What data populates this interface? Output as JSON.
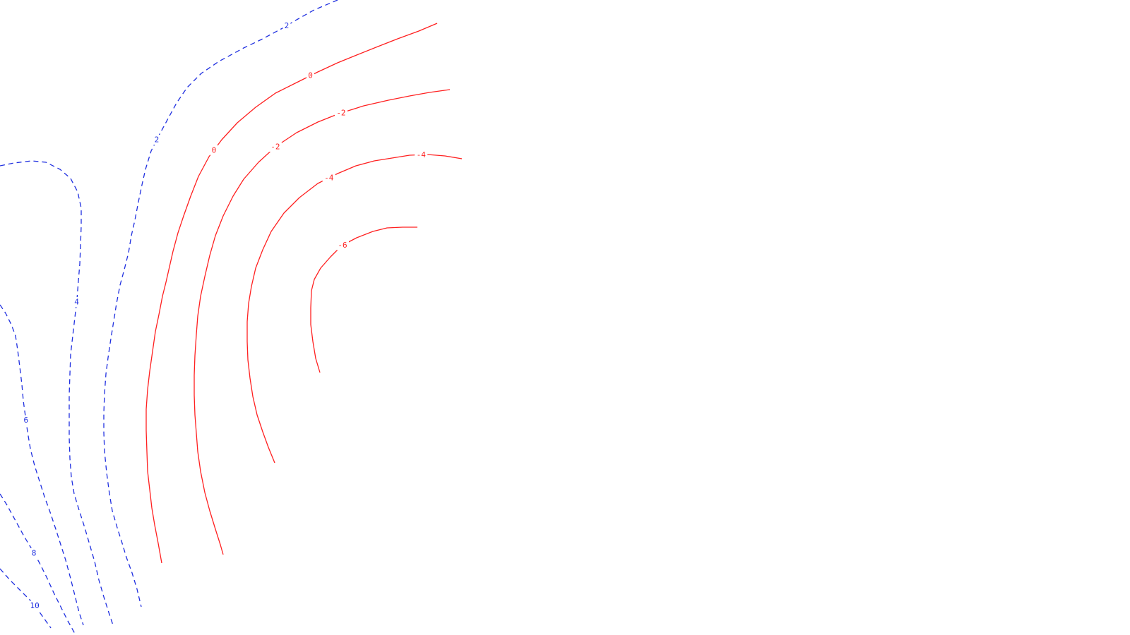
{
  "chart_data": {
    "type": "contour",
    "title": "",
    "xlabel": "",
    "ylabel": "",
    "grid": false,
    "legend": "none",
    "styles": {
      "positive": {
        "color": "#1f2fe0",
        "dash": "dashed"
      },
      "negative": {
        "color": "#ff2020",
        "dash": "solid"
      },
      "zero": {
        "color": "#ff2020",
        "dash": "solid"
      }
    },
    "contours": [
      {
        "level": 2,
        "sign": "positive",
        "labels": [
          "2",
          "2"
        ],
        "points": [
          [
            478,
            0
          ],
          [
            445,
            14
          ],
          [
            420,
            28
          ],
          [
            400,
            40
          ],
          [
            370,
            56
          ],
          [
            345,
            68
          ],
          [
            310,
            87
          ],
          [
            285,
            104
          ],
          [
            265,
            124
          ],
          [
            250,
            146
          ],
          [
            238,
            168
          ],
          [
            225,
            192
          ],
          [
            214,
            214
          ],
          [
            206,
            240
          ],
          [
            201,
            262
          ],
          [
            196,
            286
          ],
          [
            191,
            312
          ],
          [
            186,
            334
          ],
          [
            182,
            358
          ],
          [
            176,
            382
          ],
          [
            170,
            404
          ],
          [
            165,
            430
          ],
          [
            161,
            455
          ],
          [
            157,
            480
          ],
          [
            153,
            507
          ],
          [
            150,
            530
          ],
          [
            148,
            558
          ],
          [
            147,
            585
          ],
          [
            147,
            613
          ],
          [
            148,
            640
          ],
          [
            151,
            670
          ],
          [
            155,
            700
          ],
          [
            159,
            724
          ],
          [
            166,
            748
          ],
          [
            173,
            770
          ],
          [
            179,
            790
          ],
          [
            187,
            812
          ],
          [
            194,
            835
          ],
          [
            200,
            860
          ]
        ]
      },
      {
        "level": 4,
        "sign": "positive",
        "labels": [
          "4"
        ],
        "points": [
          [
            0,
            235
          ],
          [
            20,
            231
          ],
          [
            45,
            228
          ],
          [
            65,
            230
          ],
          [
            85,
            240
          ],
          [
            100,
            253
          ],
          [
            110,
            272
          ],
          [
            115,
            295
          ],
          [
            115,
            320
          ],
          [
            114,
            348
          ],
          [
            113,
            374
          ],
          [
            111,
            398
          ],
          [
            109,
            424
          ],
          [
            106,
            450
          ],
          [
            103,
            476
          ],
          [
            100,
            502
          ],
          [
            99,
            530
          ],
          [
            98,
            560
          ],
          [
            98,
            590
          ],
          [
            98,
            620
          ],
          [
            99,
            650
          ],
          [
            101,
            676
          ],
          [
            105,
            700
          ],
          [
            112,
            723
          ],
          [
            120,
            748
          ],
          [
            127,
            772
          ],
          [
            134,
            796
          ],
          [
            140,
            822
          ],
          [
            147,
            846
          ],
          [
            154,
            868
          ],
          [
            160,
            886
          ]
        ]
      },
      {
        "level": 6,
        "sign": "positive",
        "labels": [
          "6"
        ],
        "points": [
          [
            0,
            432
          ],
          [
            8,
            444
          ],
          [
            16,
            460
          ],
          [
            22,
            476
          ],
          [
            25,
            496
          ],
          [
            28,
            520
          ],
          [
            31,
            545
          ],
          [
            33,
            568
          ],
          [
            36,
            590
          ],
          [
            39,
            612
          ],
          [
            43,
            636
          ],
          [
            49,
            660
          ],
          [
            56,
            682
          ],
          [
            63,
            704
          ],
          [
            71,
            726
          ],
          [
            79,
            750
          ],
          [
            86,
            772
          ],
          [
            93,
            794
          ],
          [
            100,
            820
          ],
          [
            106,
            844
          ],
          [
            112,
            868
          ],
          [
            118,
            886
          ]
        ]
      },
      {
        "level": 8,
        "sign": "positive",
        "labels": [
          "8"
        ],
        "points": [
          [
            0,
            700
          ],
          [
            10,
            716
          ],
          [
            22,
            738
          ],
          [
            34,
            760
          ],
          [
            46,
            780
          ],
          [
            56,
            798
          ],
          [
            66,
            818
          ],
          [
            76,
            840
          ],
          [
            86,
            860
          ],
          [
            96,
            880
          ],
          [
            106,
            898
          ]
        ]
      },
      {
        "level": 10,
        "sign": "positive",
        "labels": [
          "10"
        ],
        "points": [
          [
            0,
            806
          ],
          [
            14,
            822
          ],
          [
            28,
            836
          ],
          [
            42,
            850
          ],
          [
            52,
            862
          ],
          [
            62,
            876
          ],
          [
            72,
            890
          ]
        ]
      },
      {
        "level": 0,
        "sign": "zero",
        "labels": [
          "0",
          "0"
        ],
        "points": [
          [
            619,
            33
          ],
          [
            593,
            44
          ],
          [
            563,
            55
          ],
          [
            535,
            66
          ],
          [
            505,
            78
          ],
          [
            478,
            89
          ],
          [
            450,
            102
          ],
          [
            422,
            116
          ],
          [
            390,
            132
          ],
          [
            362,
            152
          ],
          [
            336,
            174
          ],
          [
            314,
            198
          ],
          [
            296,
            222
          ],
          [
            281,
            250
          ],
          [
            270,
            278
          ],
          [
            260,
            306
          ],
          [
            252,
            330
          ],
          [
            245,
            356
          ],
          [
            240,
            378
          ],
          [
            235,
            400
          ],
          [
            230,
            420
          ],
          [
            225,
            446
          ],
          [
            220,
            470
          ],
          [
            216,
            498
          ],
          [
            212,
            526
          ],
          [
            209,
            552
          ],
          [
            207,
            580
          ],
          [
            207,
            610
          ],
          [
            208,
            640
          ],
          [
            209,
            668
          ],
          [
            212,
            694
          ],
          [
            215,
            720
          ],
          [
            219,
            744
          ],
          [
            224,
            770
          ],
          [
            229,
            798
          ]
        ]
      },
      {
        "level": -2,
        "sign": "negative",
        "labels": [
          "-2",
          "-2"
        ],
        "points": [
          [
            637,
            127
          ],
          [
            608,
            131
          ],
          [
            580,
            136
          ],
          [
            550,
            142
          ],
          [
            515,
            150
          ],
          [
            480,
            161
          ],
          [
            450,
            173
          ],
          [
            420,
            188
          ],
          [
            390,
            208
          ],
          [
            366,
            230
          ],
          [
            345,
            254
          ],
          [
            330,
            278
          ],
          [
            316,
            306
          ],
          [
            305,
            334
          ],
          [
            297,
            362
          ],
          [
            290,
            392
          ],
          [
            284,
            420
          ],
          [
            280,
            448
          ],
          [
            278,
            474
          ],
          [
            276,
            504
          ],
          [
            275,
            532
          ],
          [
            275,
            560
          ],
          [
            276,
            588
          ],
          [
            278,
            614
          ],
          [
            280,
            640
          ],
          [
            284,
            668
          ],
          [
            290,
            698
          ],
          [
            297,
            724
          ],
          [
            305,
            750
          ],
          [
            312,
            772
          ],
          [
            316,
            786
          ]
        ]
      },
      {
        "level": -4,
        "sign": "negative",
        "labels": [
          "-4",
          "-4"
        ],
        "points": [
          [
            654,
            225
          ],
          [
            630,
            221
          ],
          [
            605,
            219
          ],
          [
            580,
            220
          ],
          [
            555,
            224
          ],
          [
            530,
            228
          ],
          [
            504,
            235
          ],
          [
            478,
            246
          ],
          [
            450,
            260
          ],
          [
            424,
            280
          ],
          [
            402,
            302
          ],
          [
            384,
            328
          ],
          [
            372,
            354
          ],
          [
            362,
            380
          ],
          [
            356,
            406
          ],
          [
            352,
            430
          ],
          [
            350,
            456
          ],
          [
            350,
            484
          ],
          [
            351,
            510
          ],
          [
            354,
            536
          ],
          [
            358,
            562
          ],
          [
            364,
            588
          ],
          [
            372,
            612
          ],
          [
            380,
            634
          ],
          [
            389,
            656
          ]
        ]
      },
      {
        "level": -6,
        "sign": "negative",
        "labels": [
          "-6"
        ],
        "points": [
          [
            591,
            322
          ],
          [
            570,
            322
          ],
          [
            548,
            323
          ],
          [
            528,
            328
          ],
          [
            505,
            337
          ],
          [
            484,
            348
          ],
          [
            468,
            364
          ],
          [
            454,
            380
          ],
          [
            445,
            396
          ],
          [
            441,
            412
          ],
          [
            440,
            436
          ],
          [
            440,
            460
          ],
          [
            443,
            484
          ],
          [
            447,
            508
          ],
          [
            453,
            528
          ]
        ]
      }
    ]
  }
}
